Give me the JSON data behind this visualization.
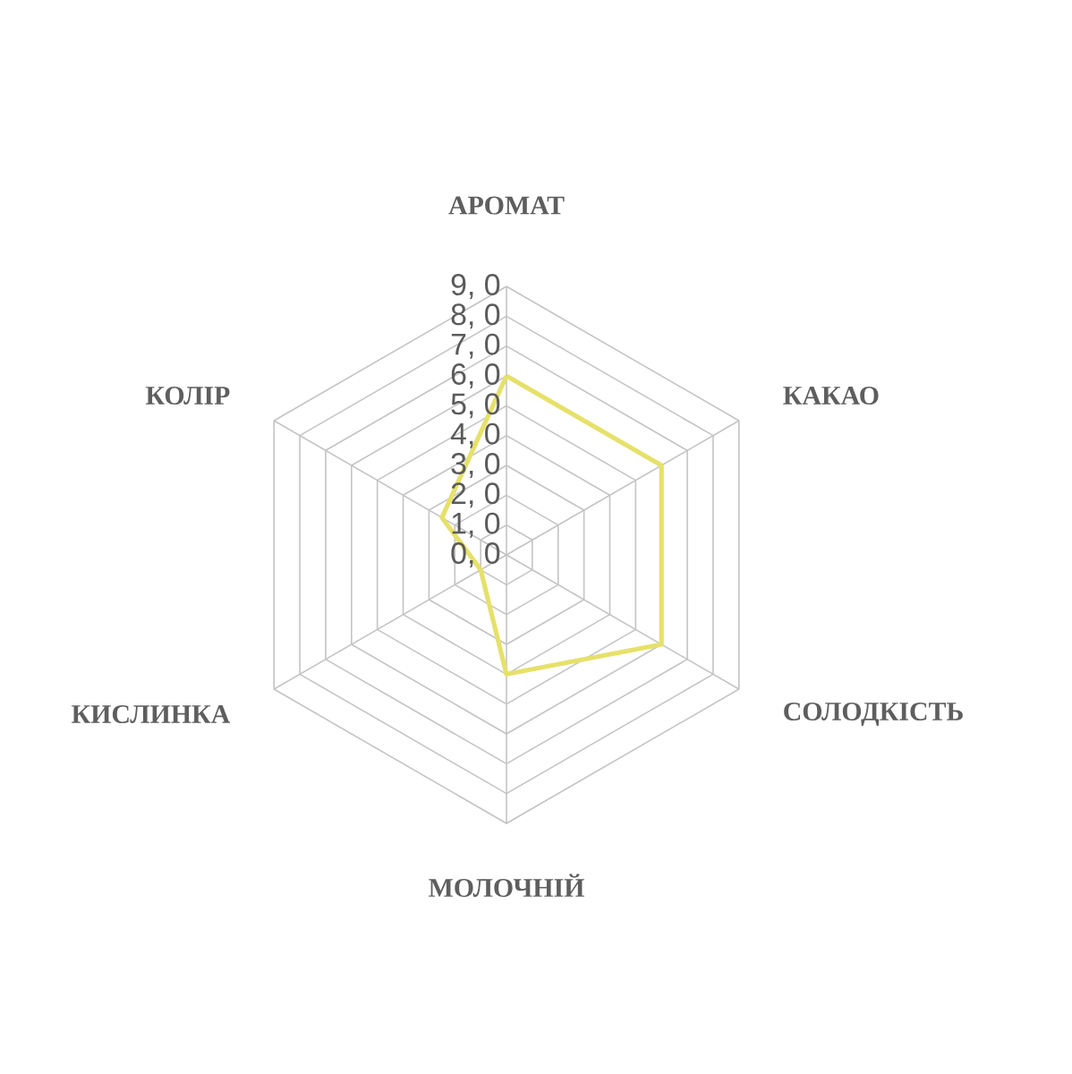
{
  "chart_data": {
    "type": "radar",
    "categories": [
      "АРОМАТ",
      "КАКАО",
      "СОЛОДКІСТЬ",
      "МОЛОЧНІЙ",
      "КИСЛИНКА",
      "КОЛІР"
    ],
    "series": [
      {
        "color": "#e6e16a",
        "values": [
          6,
          6,
          6,
          4,
          1,
          2.5
        ]
      }
    ],
    "ylim": [
      0,
      9
    ],
    "yticks": [
      {
        "value": 0,
        "label": "0, 0"
      },
      {
        "value": 1,
        "label": "1, 0"
      },
      {
        "value": 2,
        "label": "2, 0"
      },
      {
        "value": 3,
        "label": "3, 0"
      },
      {
        "value": 4,
        "label": "4, 0"
      },
      {
        "value": 5,
        "label": "5, 0"
      },
      {
        "value": 6,
        "label": "6, 0"
      },
      {
        "value": 7,
        "label": "7, 0"
      },
      {
        "value": 8,
        "label": "8, 0"
      },
      {
        "value": 9,
        "label": "9, 0"
      }
    ],
    "grid": true
  }
}
